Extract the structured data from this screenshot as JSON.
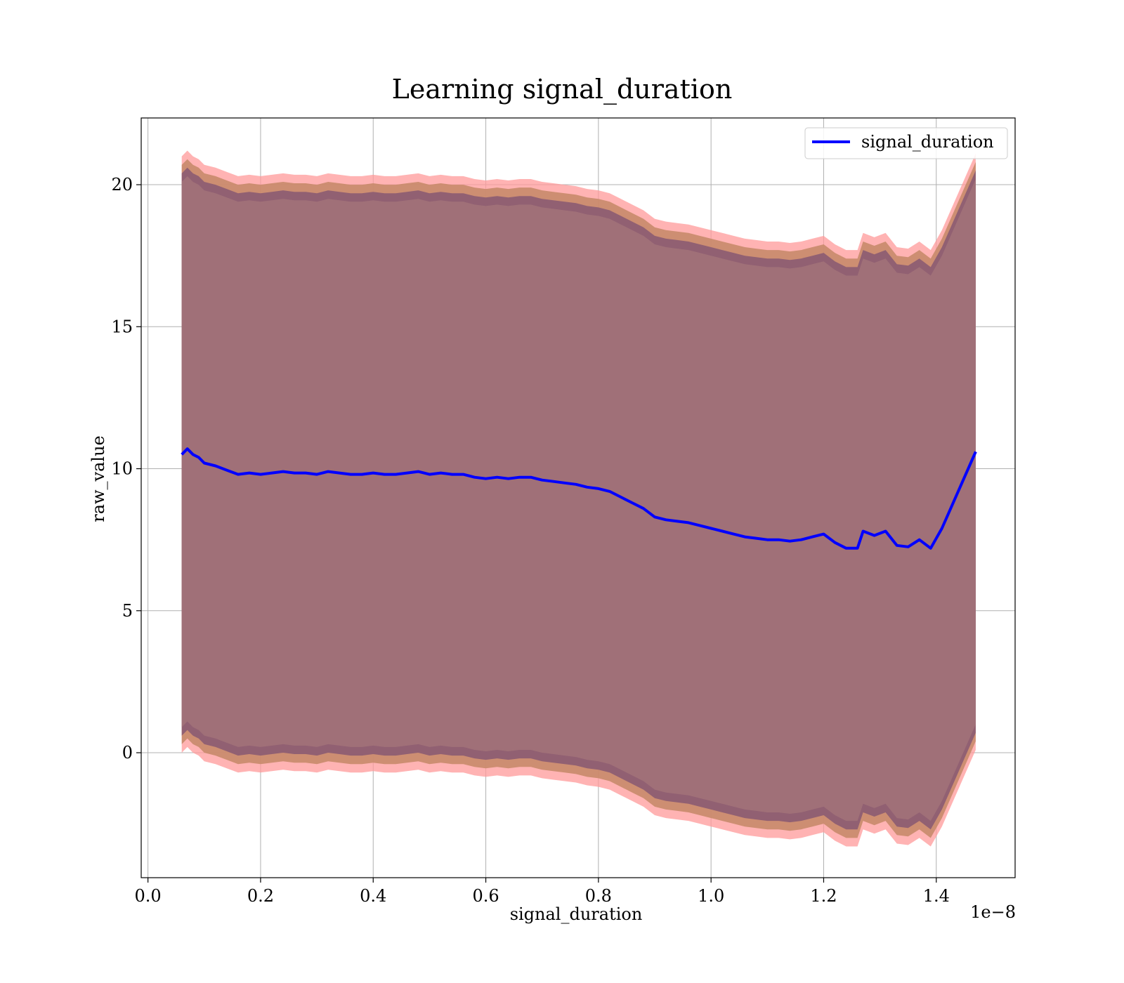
{
  "chart_data": {
    "type": "line",
    "title": "Learning signal_duration",
    "xlabel": "signal_duration",
    "ylabel": "raw_value",
    "x_offset_text": "1e−8",
    "x_scale": 1e-08,
    "xlim": [
      -0.012,
      1.54
    ],
    "ylim": [
      -4.4,
      22.35
    ],
    "x_ticks": [
      0.0,
      0.2,
      0.4,
      0.6,
      0.8,
      1.0,
      1.2,
      1.4
    ],
    "x_tick_labels": [
      "0.0",
      "0.2",
      "0.4",
      "0.6",
      "0.8",
      "1.0",
      "1.2",
      "1.4"
    ],
    "y_ticks": [
      0,
      5,
      10,
      15,
      20
    ],
    "y_tick_labels": [
      "0",
      "5",
      "10",
      "15",
      "20"
    ],
    "grid": true,
    "legend": {
      "position": "top-right",
      "entries": [
        "signal_duration"
      ]
    },
    "colors": {
      "line": "#0000ff",
      "band_outer": "#ff9999",
      "band_middle": "#c88a6a",
      "band_inner": "#8b5b72",
      "band_core": "#a07078",
      "grid": "#b0b0b0"
    },
    "series": [
      {
        "name": "signal_duration",
        "x": [
          0.06,
          0.07,
          0.08,
          0.09,
          0.1,
          0.12,
          0.14,
          0.16,
          0.18,
          0.2,
          0.22,
          0.24,
          0.26,
          0.28,
          0.3,
          0.32,
          0.34,
          0.36,
          0.38,
          0.4,
          0.42,
          0.44,
          0.46,
          0.48,
          0.5,
          0.52,
          0.54,
          0.56,
          0.58,
          0.6,
          0.62,
          0.64,
          0.66,
          0.68,
          0.7,
          0.72,
          0.74,
          0.76,
          0.78,
          0.8,
          0.82,
          0.84,
          0.86,
          0.88,
          0.9,
          0.92,
          0.94,
          0.96,
          0.98,
          1.0,
          1.02,
          1.04,
          1.06,
          1.08,
          1.1,
          1.12,
          1.14,
          1.16,
          1.18,
          1.2,
          1.22,
          1.24,
          1.26,
          1.27,
          1.29,
          1.31,
          1.33,
          1.35,
          1.37,
          1.39,
          1.41,
          1.47
        ],
        "y": [
          10.5,
          10.7,
          10.5,
          10.4,
          10.2,
          10.1,
          9.95,
          9.8,
          9.85,
          9.8,
          9.85,
          9.9,
          9.85,
          9.85,
          9.8,
          9.9,
          9.85,
          9.8,
          9.8,
          9.85,
          9.8,
          9.8,
          9.85,
          9.9,
          9.8,
          9.85,
          9.8,
          9.8,
          9.7,
          9.65,
          9.7,
          9.65,
          9.7,
          9.7,
          9.6,
          9.55,
          9.5,
          9.45,
          9.35,
          9.3,
          9.2,
          9.0,
          8.8,
          8.6,
          8.3,
          8.2,
          8.15,
          8.1,
          8.0,
          7.9,
          7.8,
          7.7,
          7.6,
          7.55,
          7.5,
          7.5,
          7.45,
          7.5,
          7.6,
          7.7,
          7.4,
          7.2,
          7.2,
          7.8,
          7.65,
          7.8,
          7.3,
          7.25,
          7.5,
          7.2,
          7.9,
          10.6
        ]
      }
    ],
    "bands": [
      {
        "name": "outer",
        "offset": 10.5
      },
      {
        "name": "middle",
        "offset": 10.2
      },
      {
        "name": "inner",
        "offset": 9.9
      },
      {
        "name": "core",
        "offset": 9.6
      }
    ]
  }
}
